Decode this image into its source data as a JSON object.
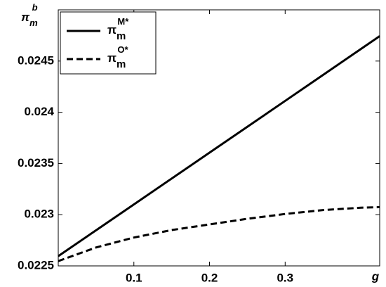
{
  "chart_data": {
    "type": "line",
    "y_label": {
      "base": "π",
      "sub": "m",
      "sup": "b"
    },
    "x_label": "g",
    "x": [
      0,
      0.05,
      0.1,
      0.15,
      0.2,
      0.25,
      0.3,
      0.35,
      0.4,
      0.425
    ],
    "series": [
      {
        "name_base": "π",
        "name_sub": "m",
        "name_sup": "M*",
        "color": "#000000",
        "dash": "solid",
        "values": [
          0.022595,
          0.022848,
          0.0231,
          0.023353,
          0.023606,
          0.023858,
          0.024111,
          0.024364,
          0.024617,
          0.024743
        ]
      },
      {
        "name_base": "π",
        "name_sub": "m",
        "name_sup": "O*",
        "color": "#000000",
        "dash": "dashed",
        "values": [
          0.022547,
          0.02268,
          0.022777,
          0.02285,
          0.022905,
          0.02296,
          0.023007,
          0.023045,
          0.023068,
          0.023074
        ]
      }
    ],
    "xlim": [
      0,
      0.425
    ],
    "xticks": [
      0.1,
      0.2,
      0.3
    ],
    "ylim": [
      0.0225,
      0.025
    ],
    "yticks": [
      0.0225,
      0.023,
      0.0235,
      0.024,
      0.0245
    ],
    "grid": false,
    "legend": "top-left"
  }
}
